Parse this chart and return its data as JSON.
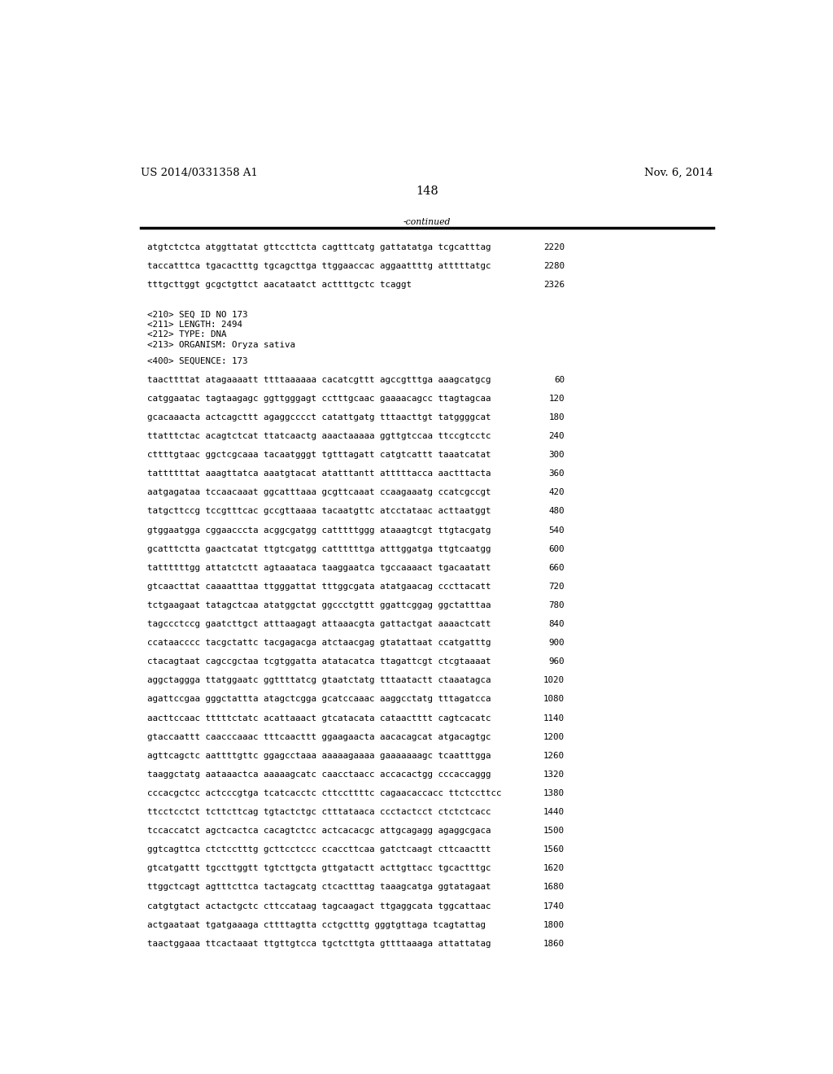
{
  "header_left": "US 2014/0331358 A1",
  "header_right": "Nov. 6, 2014",
  "page_number": "148",
  "continued_label": "-continued",
  "background_color": "#ffffff",
  "text_color": "#000000",
  "font_size_header": 9.5,
  "font_size_body": 7.8,
  "font_size_page": 10.5,
  "sequence_lines_top": [
    [
      "atgtctctca atggttatat gttccttcta cagtttcatg gattatatga tcgcatttag",
      "2220"
    ],
    [
      "taccatttca tgacactttg tgcagcttga ttggaaccac aggaattttg atttttatgc",
      "2280"
    ],
    [
      "tttgcttggt gcgctgttct aacataatct acttttgctc tcaggt",
      "2326"
    ]
  ],
  "metadata_lines": [
    "<210> SEQ ID NO 173",
    "<211> LENGTH: 2494",
    "<212> TYPE: DNA",
    "<213> ORGANISM: Oryza sativa"
  ],
  "sequence_label": "<400> SEQUENCE: 173",
  "sequence_lines_main": [
    [
      "taacttttat atagaaaatt ttttaaaaaa cacatcgttt agccgtttga aaagcatgcg",
      "60"
    ],
    [
      "catggaatac tagtaagagc ggttgggagt cctttgcaac gaaaacagcc ttagtagcaa",
      "120"
    ],
    [
      "gcacaaacta actcagcttt agaggcccct catattgatg tttaacttgt tatggggcat",
      "180"
    ],
    [
      "ttatttctac acagtctcat ttatcaactg aaactaaaaa ggttgtccaa ttccgtcctc",
      "240"
    ],
    [
      "cttttgtaac ggctcgcaaa tacaatgggt tgtttagatt catgtcattt taaatcatat",
      "300"
    ],
    [
      "tattttttat aaagttatca aaatgtacat atatttantt atttttacca aactttacta",
      "360"
    ],
    [
      "aatgagataa tccaacaaat ggcatttaaa gcgttcaaat ccaagaaatg ccatcgccgt",
      "420"
    ],
    [
      "tatgcttccg tccgtttcac gccgttaaaa tacaatgttc atcctataac acttaatggt",
      "480"
    ],
    [
      "gtggaatgga cggaacccta acggcgatgg catttttggg ataaagtcgt ttgtacgatg",
      "540"
    ],
    [
      "gcatttctta gaactcatat ttgtcgatgg cattttttga atttggatga ttgtcaatgg",
      "600"
    ],
    [
      "tattttttgg attatctctt agtaaataca taaggaatca tgccaaaact tgacaatatt",
      "660"
    ],
    [
      "gtcaacttat caaaatttaa ttgggattat tttggcgata atatgaacag cccttacatt",
      "720"
    ],
    [
      "tctgaagaat tatagctcaa atatggctat ggccctgttt ggattcggag ggctatttaa",
      "780"
    ],
    [
      "tagccctccg gaatcttgct atttaagagt attaaacgta gattactgat aaaactcatt",
      "840"
    ],
    [
      "ccataacccc tacgctattc tacgagacga atctaacgag gtatattaat ccatgatttg",
      "900"
    ],
    [
      "ctacagtaat cagccgctaa tcgtggatta atatacatca ttagattcgt ctcgtaaaat",
      "960"
    ],
    [
      "aggctaggga ttatggaatc ggttttatcg gtaatctatg tttaatactt ctaaatagca",
      "1020"
    ],
    [
      "agattccgaa gggctattta atagctcgga gcatccaaac aaggcctatg tttagatcca",
      "1080"
    ],
    [
      "aacttccaac tttttctatc acattaaact gtcatacata cataactttt cagtcacatc",
      "1140"
    ],
    [
      "gtaccaattt caacccaaac tttcaacttt ggaagaacta aacacagcat atgacagtgc",
      "1200"
    ],
    [
      "agttcagctc aattttgttc ggagcctaaa aaaaagaaaa gaaaaaaagc tcaatttgga",
      "1260"
    ],
    [
      "taaggctatg aataaactca aaaaagcatc caacctaacc accacactgg cccaccaggg",
      "1320"
    ],
    [
      "cccacgctcc actcccgtga tcatcacctc cttccttttc cagaacaccacc ttctccttcc",
      "1380"
    ],
    [
      "ttcctcctct tcttcttcag tgtactctgc ctttataaca ccctactcct ctctctcacc",
      "1440"
    ],
    [
      "tccaccatct agctcactca cacagtctcc actcacacgc attgcagagg agaggcgaca",
      "1500"
    ],
    [
      "ggtcagttca ctctcctttg gcttcctccc ccaccttcaa gatctcaagt cttcaacttt",
      "1560"
    ],
    [
      "gtcatgattt tgccttggtt tgtcttgcta gttgatactt acttgttacc tgcactttgc",
      "1620"
    ],
    [
      "ttggctcagt agtttcttca tactagcatg ctcactttag taaagcatga ggtatagaat",
      "1680"
    ],
    [
      "catgtgtact actactgctc cttccataag tagcaagact ttgaggcata tggcattaac",
      "1740"
    ],
    [
      "actgaataat tgatgaaaga cttttagtta cctgctttg gggtgttaga tcagtattag",
      "1800"
    ],
    [
      "taactggaaa ttcactaaat ttgttgtcca tgctcttgta gttttaaaga attattatag",
      "1860"
    ]
  ]
}
